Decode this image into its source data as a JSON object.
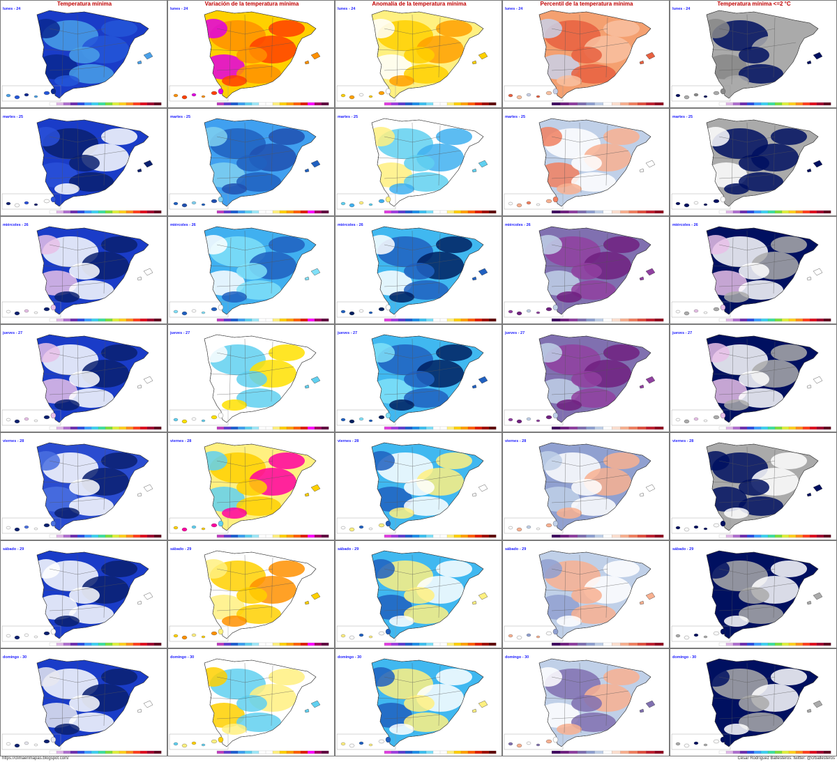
{
  "columns": [
    {
      "title": "Temperatura mínima",
      "type": "tmin",
      "land": "#1f3fc4",
      "accent": "#e6e6f0",
      "scale": [
        "#ffffff",
        "#e0b8e8",
        "#b070d0",
        "#7030b0",
        "#3050e0",
        "#40a0ff",
        "#40d0f0",
        "#40e0a0",
        "#80e040",
        "#e0f040",
        "#ffd020",
        "#ff9020",
        "#ff4020",
        "#e01020",
        "#a00030",
        "#600020"
      ]
    },
    {
      "title": "Variación de la temperatura mínima",
      "type": "var",
      "land": "#ffffff",
      "accent": "#ffe000",
      "scale": [
        "#c040c0",
        "#6040d0",
        "#2060d0",
        "#40a0f0",
        "#60d0f0",
        "#a0e8f8",
        "#ffffff",
        "#ffffff",
        "#fff080",
        "#ffd000",
        "#ffa000",
        "#ff6000",
        "#e02000",
        "#ff00ff",
        "#a00060",
        "#600040"
      ]
    },
    {
      "title": "Anomalía de la temperatura mínima",
      "type": "anom",
      "land": "#ffffff",
      "accent": "#40c8f0",
      "scale": [
        "#e040e0",
        "#a040e0",
        "#6040d0",
        "#2060d0",
        "#2090e8",
        "#40c0f0",
        "#80e0f8",
        "#ffffff",
        "#ffffff",
        "#fff080",
        "#ffd000",
        "#ffa000",
        "#ff6000",
        "#e02000",
        "#a01000",
        "#600000"
      ]
    },
    {
      "title": "Percentil de la temperatura mínima",
      "type": "perc",
      "land": "#ffffff",
      "accent": "#9fb2d8",
      "scale": [
        "#400060",
        "#702080",
        "#9040a0",
        "#8070b0",
        "#90a0d0",
        "#c0d0e8",
        "#ffffff",
        "#fde0d0",
        "#f8b090",
        "#f08060",
        "#e05040",
        "#c02030",
        "#900020"
      ]
    },
    {
      "title": "Temperatura mínima <=2 °C",
      "type": "frost",
      "land": "#aaaaaa",
      "accent": "#001060",
      "scale": [
        "#ffffff",
        "#e0b8e8",
        "#b070d0",
        "#7030b0",
        "#3050e0",
        "#40a0ff",
        "#40d0f0",
        "#40e0a0",
        "#80e040",
        "#e0f040",
        "#ffd020",
        "#ff9020",
        "#ff4020",
        "#e01020",
        "#a00030",
        "#600020"
      ]
    }
  ],
  "days": [
    "lunes - 24",
    "martes - 25",
    "miércoles - 26",
    "jueves - 27",
    "viernes - 28",
    "sábado - 29",
    "domingo - 30"
  ],
  "maps": [
    [
      {
        "day": "lunes - 24",
        "fill": "#1a3cc8",
        "patches": [
          "#4aa0e8",
          "#2456d8",
          "#0a2890"
        ]
      },
      {
        "day": "lunes - 24",
        "fill": "#ffd000",
        "patches": [
          "#ff9000",
          "#ff4000",
          "#e000e0"
        ]
      },
      {
        "day": "lunes - 24",
        "fill": "#fff080",
        "patches": [
          "#ffd000",
          "#ffa000",
          "#ffffff"
        ]
      },
      {
        "day": "lunes - 24",
        "fill": "#f4a070",
        "patches": [
          "#e86040",
          "#f8c0a0",
          "#c8d0e8"
        ]
      },
      {
        "day": "lunes - 24",
        "fill": "#aaaaaa",
        "patches": [
          "#001060",
          "#aaaaaa",
          "#888888"
        ]
      }
    ],
    [
      {
        "day": "martes - 25",
        "fill": "#1a3cc8",
        "patches": [
          "#0a2070",
          "#ffffff",
          "#2a50d8"
        ]
      },
      {
        "day": "martes - 25",
        "fill": "#40a0f0",
        "patches": [
          "#2060c0",
          "#2050b0",
          "#80d0f0"
        ]
      },
      {
        "day": "martes - 25",
        "fill": "#ffffff",
        "patches": [
          "#60d0f0",
          "#40b0f0",
          "#fff080"
        ]
      },
      {
        "day": "martes - 25",
        "fill": "#c0d0e8",
        "patches": [
          "#ffffff",
          "#f8b090",
          "#f08060"
        ]
      },
      {
        "day": "martes - 25",
        "fill": "#aaaaaa",
        "patches": [
          "#001060",
          "#001060",
          "#ffffff"
        ]
      }
    ],
    [
      {
        "day": "miércoles - 26",
        "fill": "#1a3cc8",
        "patches": [
          "#ffffff",
          "#0a2070",
          "#e8c0e8"
        ]
      },
      {
        "day": "miércoles - 26",
        "fill": "#40b0f0",
        "patches": [
          "#80e0f8",
          "#2060c0",
          "#ffffff"
        ]
      },
      {
        "day": "miércoles - 26",
        "fill": "#40b8f0",
        "patches": [
          "#2060c0",
          "#002060",
          "#ffffff"
        ]
      },
      {
        "day": "miércoles - 26",
        "fill": "#8070b0",
        "patches": [
          "#9040a0",
          "#702080",
          "#c0d0e8"
        ]
      },
      {
        "day": "miércoles - 26",
        "fill": "#001060",
        "patches": [
          "#ffffff",
          "#aaaaaa",
          "#e8c0e8"
        ]
      }
    ],
    [
      {
        "day": "jueves - 27",
        "fill": "#1a3cc8",
        "patches": [
          "#ffffff",
          "#0a2070",
          "#e8c0e8"
        ]
      },
      {
        "day": "jueves - 27",
        "fill": "#ffffff",
        "patches": [
          "#60d0f0",
          "#ffe000",
          "#ffffff"
        ]
      },
      {
        "day": "jueves - 27",
        "fill": "#40b8f0",
        "patches": [
          "#2060c0",
          "#002060",
          "#80e0f8"
        ]
      },
      {
        "day": "jueves - 27",
        "fill": "#8070b0",
        "patches": [
          "#9040a0",
          "#702080",
          "#c0d0e8"
        ]
      },
      {
        "day": "jueves - 27",
        "fill": "#001060",
        "patches": [
          "#ffffff",
          "#aaaaaa",
          "#e8c0e8"
        ]
      }
    ],
    [
      {
        "day": "viernes - 28",
        "fill": "#2a4cd0",
        "patches": [
          "#ffffff",
          "#0a2070",
          "#4a70e0"
        ]
      },
      {
        "day": "viernes - 28",
        "fill": "#fff080",
        "patches": [
          "#ffd000",
          "#ff00a0",
          "#60d0f0"
        ]
      },
      {
        "day": "viernes - 28",
        "fill": "#40b8f0",
        "patches": [
          "#ffffff",
          "#fff080",
          "#2060c0"
        ]
      },
      {
        "day": "viernes - 28",
        "fill": "#90a0d0",
        "patches": [
          "#ffffff",
          "#f8b090",
          "#c0d0e8"
        ]
      },
      {
        "day": "viernes - 28",
        "fill": "#aaaaaa",
        "patches": [
          "#001060",
          "#ffffff",
          "#001060"
        ]
      }
    ],
    [
      {
        "day": "sábado - 29",
        "fill": "#1a3cc8",
        "patches": [
          "#ffffff",
          "#0a2070",
          "#ffffff"
        ]
      },
      {
        "day": "sábado - 29",
        "fill": "#ffffff",
        "patches": [
          "#ffd000",
          "#ff9000",
          "#fff080"
        ]
      },
      {
        "day": "sábado - 29",
        "fill": "#40b8f0",
        "patches": [
          "#fff080",
          "#ffffff",
          "#2060c0"
        ]
      },
      {
        "day": "sábado - 29",
        "fill": "#c0d0e8",
        "patches": [
          "#f8b090",
          "#ffffff",
          "#90a0d0"
        ]
      },
      {
        "day": "sábado - 29",
        "fill": "#001060",
        "patches": [
          "#aaaaaa",
          "#ffffff",
          "#001060"
        ]
      }
    ],
    [
      {
        "day": "domingo - 30",
        "fill": "#1a3cc8",
        "patches": [
          "#ffffff",
          "#0a2070",
          "#e8e8f0"
        ]
      },
      {
        "day": "domingo - 30",
        "fill": "#ffffff",
        "patches": [
          "#60d0f0",
          "#fff080",
          "#ffd000"
        ]
      },
      {
        "day": "domingo - 30",
        "fill": "#40b8f0",
        "patches": [
          "#fff080",
          "#ffffff",
          "#2060c0"
        ]
      },
      {
        "day": "domingo - 30",
        "fill": "#c0d0e8",
        "patches": [
          "#8070b0",
          "#f8b090",
          "#ffffff"
        ]
      },
      {
        "day": "domingo - 30",
        "fill": "#001060",
        "patches": [
          "#aaaaaa",
          "#ffffff",
          "#001060"
        ]
      }
    ]
  ],
  "footer": {
    "left": "https://climaenmapas.blogspot.com/",
    "right": "César Rodríguez Ballesteros. twitter: @crballesteros"
  }
}
